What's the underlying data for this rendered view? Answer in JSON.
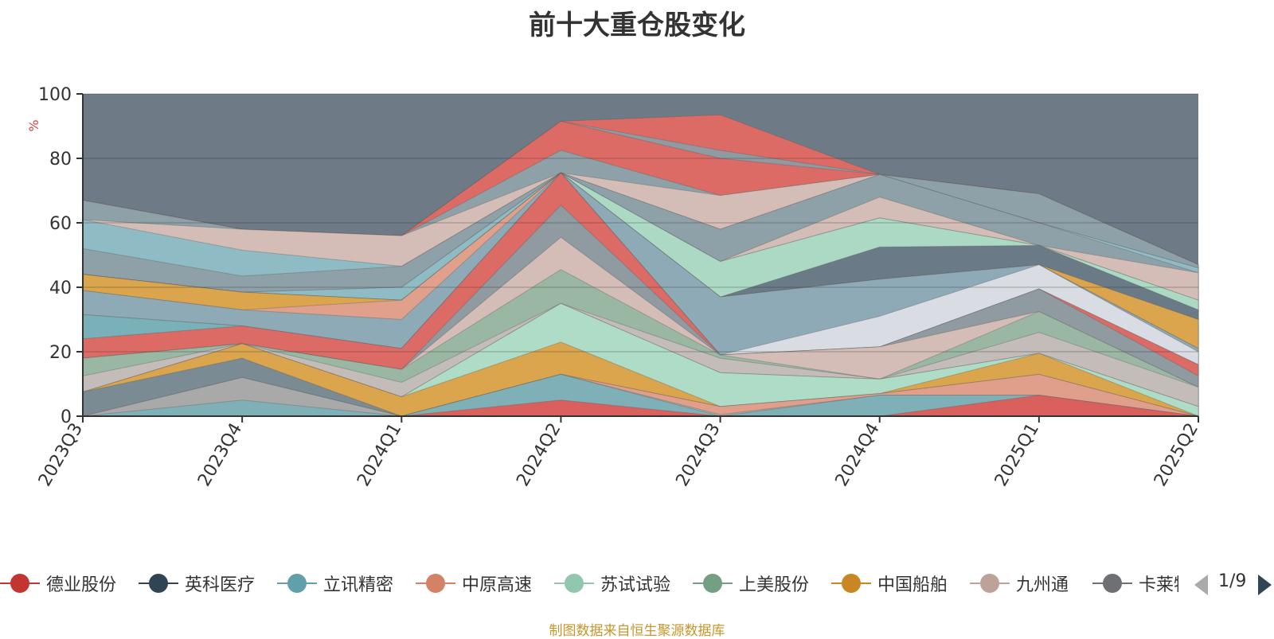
{
  "chart_data": {
    "type": "area",
    "title": "前十大重仓股变化",
    "ylabel": "%",
    "ylim": [
      0,
      100
    ],
    "yticks": [
      0,
      20,
      40,
      60,
      80,
      100
    ],
    "categories": [
      "2023Q3",
      "2023Q4",
      "2024Q1",
      "2024Q2",
      "2024Q3",
      "2024Q4",
      "2025Q1",
      "2025Q2"
    ],
    "grid": true,
    "legend_placement": "bottom",
    "background_color": "#6e7b86",
    "legend_page": "1/9",
    "visible_legend": [
      {
        "name": "德业股份",
        "color": "#c23531"
      },
      {
        "name": "英科医疗",
        "color": "#2f4554"
      },
      {
        "name": "立讯精密",
        "color": "#61a0a8"
      },
      {
        "name": "中原高速",
        "color": "#d48265"
      },
      {
        "name": "苏试试验",
        "color": "#91c7ae"
      },
      {
        "name": "上美股份",
        "color": "#749f83"
      },
      {
        "name": "中国船舶",
        "color": "#ca8622"
      },
      {
        "name": "九州通",
        "color": "#bda29a"
      },
      {
        "name": "卡莱特",
        "color": "#6e7074"
      }
    ],
    "cumulative_layers": [
      {
        "color": "#d9605c",
        "values": [
          0,
          0,
          0,
          5,
          0,
          0,
          6.5,
          0
        ]
      },
      {
        "color": "#7fb0b8",
        "values": [
          0,
          5,
          0,
          13,
          0,
          6.5,
          6.5,
          0
        ]
      },
      {
        "color": "#a9a9a9",
        "values": [
          0,
          12,
          0,
          13,
          0.5,
          6.5,
          6.5,
          0
        ]
      },
      {
        "color": "#e09f8a",
        "values": [
          0,
          12,
          0,
          13,
          3,
          7,
          13,
          0
        ]
      },
      {
        "color": "#7a8b93",
        "values": [
          7.5,
          18,
          0,
          13,
          3,
          7,
          13,
          0
        ]
      },
      {
        "color": "#daa54d",
        "values": [
          7.5,
          22.5,
          6,
          23,
          3,
          7,
          19.5,
          0
        ]
      },
      {
        "color": "#aedcc6",
        "values": [
          7.5,
          22.5,
          6,
          35,
          13.5,
          11.5,
          19.5,
          3
        ]
      },
      {
        "color": "#dd6b65",
        "values": [
          7.5,
          22.5,
          6,
          35,
          13.5,
          11.5,
          19.5,
          3
        ]
      },
      {
        "color": "#c4bcb8",
        "values": [
          12.5,
          22.5,
          10.5,
          35,
          18,
          11.5,
          26,
          9
        ]
      },
      {
        "color": "#9ab7a3",
        "values": [
          18,
          22.5,
          14.5,
          45.5,
          19,
          11.5,
          32.5,
          9
        ]
      },
      {
        "color": "#d4bdb6",
        "values": [
          18,
          22.5,
          14.5,
          55.5,
          19,
          21.5,
          32.5,
          9
        ]
      },
      {
        "color": "#8f9aa1",
        "values": [
          18,
          22.5,
          14.5,
          65.5,
          19,
          21.5,
          39.5,
          12.5
        ]
      },
      {
        "color": "#dd6b65",
        "values": [
          24,
          28,
          21,
          75.5,
          19,
          21.5,
          39.5,
          16
        ]
      },
      {
        "color": "#7ab0b8",
        "values": [
          31.5,
          28,
          21,
          75.5,
          19,
          21.5,
          39.5,
          16
        ]
      },
      {
        "color": "#d9dde3",
        "values": [
          31.5,
          28,
          21,
          75.5,
          19,
          31,
          47,
          20
        ]
      },
      {
        "color": "#8daab6",
        "values": [
          39,
          33,
          30,
          75.5,
          37,
          42.5,
          47,
          21
        ]
      },
      {
        "color": "#e0a08b",
        "values": [
          39,
          33,
          36,
          75.5,
          37,
          42.5,
          47,
          21
        ]
      },
      {
        "color": "#daa54d",
        "values": [
          44,
          38.5,
          36,
          75.5,
          37,
          42.5,
          47,
          30
        ]
      },
      {
        "color": "#6b7a87",
        "values": [
          44,
          38.5,
          36,
          75.5,
          37,
          52.5,
          53,
          33
        ]
      },
      {
        "color": "#abd9c4",
        "values": [
          44,
          38.5,
          36,
          75.5,
          48,
          61.5,
          53,
          36
        ]
      },
      {
        "color": "#8fbcc4",
        "values": [
          44,
          38.5,
          40,
          75.5,
          48,
          61.5,
          53,
          36
        ]
      },
      {
        "color": "#d4bdb6",
        "values": [
          44,
          38.5,
          40,
          75.5,
          48,
          68,
          53,
          44.5
        ]
      },
      {
        "color": "#8fa1a8",
        "values": [
          52,
          43.5,
          46.5,
          75.5,
          58,
          75,
          60,
          44.5
        ]
      },
      {
        "color": "#8fbcc4",
        "values": [
          61,
          51.5,
          46.5,
          75.5,
          58,
          75,
          60,
          46
        ]
      },
      {
        "color": "#d4bdb6",
        "values": [
          61,
          58,
          56,
          75.5,
          68.5,
          75,
          60,
          46
        ]
      },
      {
        "color": "#8fa1a8",
        "values": [
          67,
          58,
          56,
          82.5,
          68.5,
          75,
          69,
          47
        ]
      },
      {
        "color": "#dd6b65",
        "values": [
          67,
          58,
          56,
          91.5,
          80,
          75,
          69,
          47
        ]
      },
      {
        "color": "#919aa1",
        "values": [
          67,
          58,
          56,
          91.5,
          82.5,
          75,
          69,
          47
        ]
      },
      {
        "color": "#dd6b65",
        "values": [
          67,
          58,
          56,
          91.5,
          93.5,
          75,
          69,
          47
        ]
      }
    ]
  },
  "source_note": "制图数据来自恒生聚源数据库"
}
